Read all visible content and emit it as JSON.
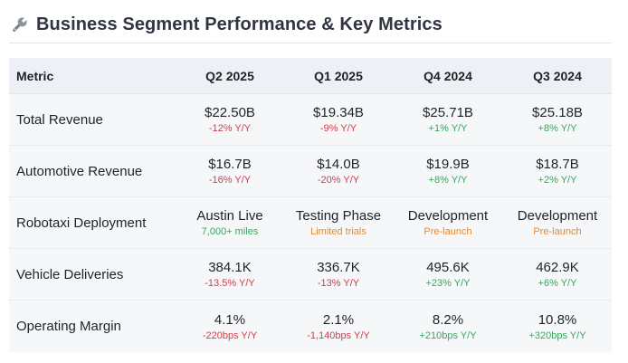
{
  "title": "Business Segment Performance & Key Metrics",
  "title_icon": "wrench-icon",
  "colors": {
    "negative": "#d63a46",
    "positive": "#36a85a",
    "warning": "#e8892a",
    "header_bg": "#edf0f4",
    "row_bg": "#f6f7f9"
  },
  "table": {
    "headers": [
      "Metric",
      "Q2 2025",
      "Q1 2025",
      "Q4 2024",
      "Q3 2024"
    ],
    "rows": [
      {
        "metric": "Total Revenue",
        "cells": [
          {
            "value": "$22.50B",
            "sub": "-12% Y/Y",
            "tone": "neg"
          },
          {
            "value": "$19.34B",
            "sub": "-9% Y/Y",
            "tone": "neg"
          },
          {
            "value": "$25.71B",
            "sub": "+1% Y/Y",
            "tone": "pos"
          },
          {
            "value": "$25.18B",
            "sub": "+8% Y/Y",
            "tone": "pos"
          }
        ]
      },
      {
        "metric": "Automotive Revenue",
        "cells": [
          {
            "value": "$16.7B",
            "sub": "-16% Y/Y",
            "tone": "neg"
          },
          {
            "value": "$14.0B",
            "sub": "-20% Y/Y",
            "tone": "neg"
          },
          {
            "value": "$19.9B",
            "sub": "+8% Y/Y",
            "tone": "pos"
          },
          {
            "value": "$18.7B",
            "sub": "+2% Y/Y",
            "tone": "pos"
          }
        ]
      },
      {
        "metric": "Robotaxi Deployment",
        "cells": [
          {
            "value": "Austin Live",
            "sub": "7,000+ miles",
            "tone": "ok"
          },
          {
            "value": "Testing Phase",
            "sub": "Limited trials",
            "tone": "warn"
          },
          {
            "value": "Development",
            "sub": "Pre-launch",
            "tone": "warn"
          },
          {
            "value": "Development",
            "sub": "Pre-launch",
            "tone": "warn"
          }
        ]
      },
      {
        "metric": "Vehicle Deliveries",
        "cells": [
          {
            "value": "384.1K",
            "sub": "-13.5% Y/Y",
            "tone": "neg"
          },
          {
            "value": "336.7K",
            "sub": "-13% Y/Y",
            "tone": "neg"
          },
          {
            "value": "495.6K",
            "sub": "+23% Y/Y",
            "tone": "pos"
          },
          {
            "value": "462.9K",
            "sub": "+6% Y/Y",
            "tone": "pos"
          }
        ]
      },
      {
        "metric": "Operating Margin",
        "cells": [
          {
            "value": "4.1%",
            "sub": "-220bps Y/Y",
            "tone": "neg"
          },
          {
            "value": "2.1%",
            "sub": "-1,140bps Y/Y",
            "tone": "neg"
          },
          {
            "value": "8.2%",
            "sub": "+210bps Y/Y",
            "tone": "pos"
          },
          {
            "value": "10.8%",
            "sub": "+320bps Y/Y",
            "tone": "pos"
          }
        ]
      }
    ]
  }
}
